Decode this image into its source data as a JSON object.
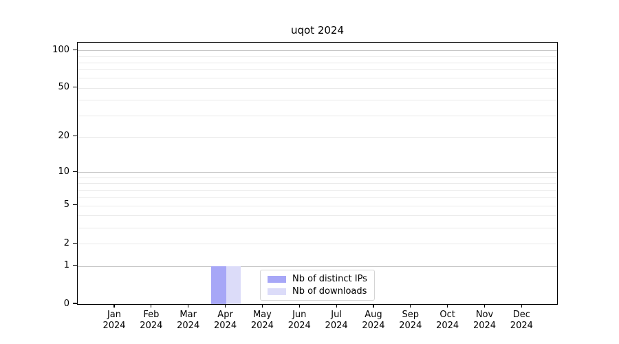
{
  "title": "uqot 2024",
  "chart_data": {
    "type": "bar",
    "title": "uqot 2024",
    "x_ticks": [
      {
        "month": "Jan",
        "year": "2024"
      },
      {
        "month": "Feb",
        "year": "2024"
      },
      {
        "month": "Mar",
        "year": "2024"
      },
      {
        "month": "Apr",
        "year": "2024"
      },
      {
        "month": "May",
        "year": "2024"
      },
      {
        "month": "Jun",
        "year": "2024"
      },
      {
        "month": "Jul",
        "year": "2024"
      },
      {
        "month": "Aug",
        "year": "2024"
      },
      {
        "month": "Sep",
        "year": "2024"
      },
      {
        "month": "Oct",
        "year": "2024"
      },
      {
        "month": "Nov",
        "year": "2024"
      },
      {
        "month": "Dec",
        "year": "2024"
      }
    ],
    "series": [
      {
        "name": "Nb of distinct IPs",
        "color": "#a7a7f7",
        "values": [
          0,
          0,
          0,
          1,
          0,
          0,
          0,
          0,
          0,
          0,
          0,
          0
        ]
      },
      {
        "name": "Nb of downloads",
        "color": "#dcdcf9",
        "values": [
          0,
          0,
          0,
          1,
          0,
          0,
          0,
          0,
          0,
          0,
          0,
          0
        ]
      }
    ],
    "yscale": "log1p",
    "ylim": [
      0,
      115
    ],
    "y_labeled_ticks": [
      0,
      1,
      2,
      5,
      10,
      20,
      50,
      100
    ],
    "y_major_gridlines": [
      1,
      10,
      100
    ],
    "y_minor_gridlines": [
      2,
      3,
      4,
      5,
      6,
      7,
      8,
      9,
      20,
      30,
      40,
      50,
      60,
      70,
      80,
      90
    ],
    "grid": true,
    "legend_position": "lower center"
  },
  "legend": {
    "items": [
      {
        "label": "Nb of distinct IPs",
        "color": "#a7a7f7"
      },
      {
        "label": "Nb of downloads",
        "color": "#dcdcf9"
      }
    ]
  },
  "colors": {
    "major_grid": "#c6c6c6",
    "minor_grid": "#e9e9e9",
    "axis": "#000000",
    "background": "#ffffff"
  }
}
